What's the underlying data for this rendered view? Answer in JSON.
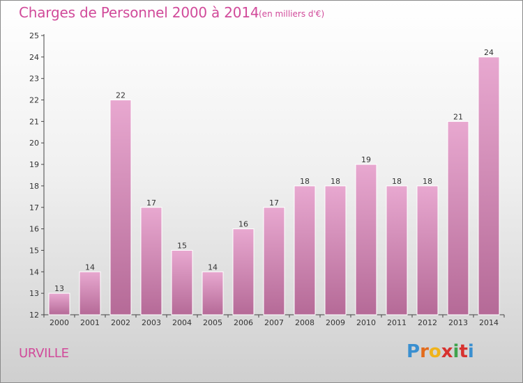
{
  "header": {
    "title": "Charges de Personnel 2000 à 2014",
    "subtitle": "(en milliers d'€)"
  },
  "footer": {
    "town": "URVILLE",
    "logo_letters": [
      "P",
      "r",
      "o",
      "x",
      "i",
      "t",
      "i"
    ],
    "logo_colors": [
      "#3a8fd0",
      "#e36b1c",
      "#f0b31a",
      "#d7322f",
      "#3fa34d",
      "#d7322f",
      "#3a8fd0"
    ]
  },
  "colors": {
    "bar_top": "#e8a8d0",
    "bar_bottom": "#b56a97",
    "accent": "#d14a9a"
  },
  "chart_data": {
    "type": "bar",
    "title": "Charges de Personnel 2000 à 2014",
    "subtitle": "(en milliers d'€)",
    "categories": [
      "2000",
      "2001",
      "2002",
      "2003",
      "2004",
      "2005",
      "2006",
      "2007",
      "2008",
      "2009",
      "2010",
      "2011",
      "2012",
      "2013",
      "2014"
    ],
    "values": [
      13,
      14,
      22,
      17,
      15,
      14,
      16,
      17,
      18,
      18,
      19,
      18,
      18,
      21,
      24
    ],
    "data_labels": [
      "13",
      "14",
      "22",
      "17",
      "15",
      "14",
      "16",
      "17",
      "18",
      "18",
      "19",
      "18",
      "18",
      "21",
      "24"
    ],
    "ylim": [
      12,
      25
    ],
    "yticks": [
      12,
      13,
      14,
      15,
      16,
      17,
      18,
      19,
      20,
      21,
      22,
      23,
      24,
      25
    ],
    "grid": false,
    "legend": "none"
  }
}
